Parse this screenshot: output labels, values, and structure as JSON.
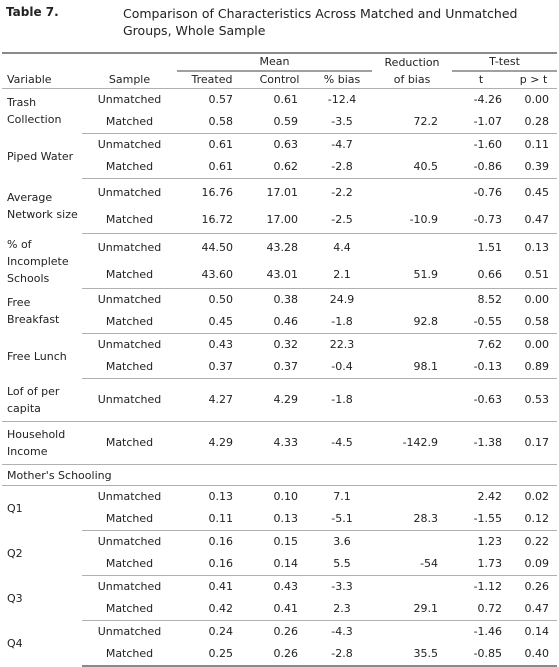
{
  "table_number": "Table 7.",
  "title": "Comparison of Characteristics Across Matched and Unmatched Groups, Whole Sample",
  "header": {
    "mean": "Mean",
    "reduction": "Reduction",
    "ttest": "T-test",
    "variable": "Variable",
    "sample": "Sample",
    "treated": "Treated",
    "control": "Control",
    "pct_bias": "% bias",
    "of_bias": "of bias",
    "t": "t",
    "p": "p > t"
  },
  "groups": [
    {
      "label": "Trash Collection",
      "rows": [
        {
          "sample": "Unmatched",
          "treated": "0.57",
          "control": "0.61",
          "bias": "-12.4",
          "reduction": "",
          "t": "-4.26",
          "p": "0.00"
        },
        {
          "sample": "Matched",
          "treated": "0.58",
          "control": "0.59",
          "bias": "-3.5",
          "reduction": "72.2",
          "t": "-1.07",
          "p": "0.28"
        }
      ]
    },
    {
      "label": "Piped Water",
      "rows": [
        {
          "sample": "Unmatched",
          "treated": "0.61",
          "control": "0.63",
          "bias": "-4.7",
          "reduction": "",
          "t": "-1.60",
          "p": "0.11"
        },
        {
          "sample": "Matched",
          "treated": "0.61",
          "control": "0.62",
          "bias": "-2.8",
          "reduction": "40.5",
          "t": "-0.86",
          "p": "0.39"
        }
      ]
    },
    {
      "label": "Average Network size",
      "rows": [
        {
          "sample": "Unmatched",
          "treated": "16.76",
          "control": "17.01",
          "bias": "-2.2",
          "reduction": "",
          "t": "-0.76",
          "p": "0.45"
        },
        {
          "sample": "Matched",
          "treated": "16.72",
          "control": "17.00",
          "bias": "-2.5",
          "reduction": "-10.9",
          "t": "-0.73",
          "p": "0.47"
        }
      ]
    },
    {
      "label": "% of Incomplete Schools",
      "rows": [
        {
          "sample": "Unmatched",
          "treated": "44.50",
          "control": "43.28",
          "bias": "4.4",
          "reduction": "",
          "t": "1.51",
          "p": "0.13"
        },
        {
          "sample": "Matched",
          "treated": "43.60",
          "control": "43.01",
          "bias": "2.1",
          "reduction": "51.9",
          "t": "0.66",
          "p": "0.51"
        }
      ]
    },
    {
      "label": "Free Breakfast",
      "rows": [
        {
          "sample": "Unmatched",
          "treated": "0.50",
          "control": "0.38",
          "bias": "24.9",
          "reduction": "",
          "t": "8.52",
          "p": "0.00"
        },
        {
          "sample": "Matched",
          "treated": "0.45",
          "control": "0.46",
          "bias": "-1.8",
          "reduction": "92.8",
          "t": "-0.55",
          "p": "0.58"
        }
      ]
    },
    {
      "label": "Free Lunch",
      "rows": [
        {
          "sample": "Unmatched",
          "treated": "0.43",
          "control": "0.32",
          "bias": "22.3",
          "reduction": "",
          "t": "7.62",
          "p": "0.00"
        },
        {
          "sample": "Matched",
          "treated": "0.37",
          "control": "0.37",
          "bias": "-0.4",
          "reduction": "98.1",
          "t": "-0.13",
          "p": "0.89"
        }
      ]
    },
    {
      "label": "Lof of per capita",
      "rows": [
        {
          "sample": "Unmatched",
          "treated": "4.27",
          "control": "4.29",
          "bias": "-1.8",
          "reduction": "",
          "t": "-0.63",
          "p": "0.53"
        }
      ]
    },
    {
      "label": "Household Income",
      "rows": [
        {
          "sample": "Matched",
          "treated": "4.29",
          "control": "4.33",
          "bias": "-4.5",
          "reduction": "-142.9",
          "t": "-1.38",
          "p": "0.17"
        }
      ]
    }
  ],
  "section_label": "Mother's Schooling",
  "mother_groups": [
    {
      "label": "Q1",
      "rows": [
        {
          "sample": "Unmatched",
          "treated": "0.13",
          "control": "0.10",
          "bias": "7.1",
          "reduction": "",
          "t": "2.42",
          "p": "0.02"
        },
        {
          "sample": "Matched",
          "treated": "0.11",
          "control": "0.13",
          "bias": "-5.1",
          "reduction": "28.3",
          "t": "-1.55",
          "p": "0.12"
        }
      ]
    },
    {
      "label": "Q2",
      "rows": [
        {
          "sample": "Unmatched",
          "treated": "0.16",
          "control": "0.15",
          "bias": "3.6",
          "reduction": "",
          "t": "1.23",
          "p": "0.22"
        },
        {
          "sample": "Matched",
          "treated": "0.16",
          "control": "0.14",
          "bias": "5.5",
          "reduction": "-54",
          "t": "1.73",
          "p": "0.09"
        }
      ]
    },
    {
      "label": "Q3",
      "rows": [
        {
          "sample": "Unmatched",
          "treated": "0.41",
          "control": "0.43",
          "bias": "-3.3",
          "reduction": "",
          "t": "-1.12",
          "p": "0.26"
        },
        {
          "sample": "Matched",
          "treated": "0.42",
          "control": "0.41",
          "bias": "2.3",
          "reduction": "29.1",
          "t": "0.72",
          "p": "0.47"
        }
      ]
    },
    {
      "label": "Q4",
      "rows": [
        {
          "sample": "Unmatched",
          "treated": "0.24",
          "control": "0.26",
          "bias": "-4.3",
          "reduction": "",
          "t": "-1.46",
          "p": "0.14"
        },
        {
          "sample": "Matched",
          "treated": "0.25",
          "control": "0.26",
          "bias": "-2.8",
          "reduction": "35.5",
          "t": "-0.85",
          "p": "0.40"
        }
      ]
    }
  ]
}
